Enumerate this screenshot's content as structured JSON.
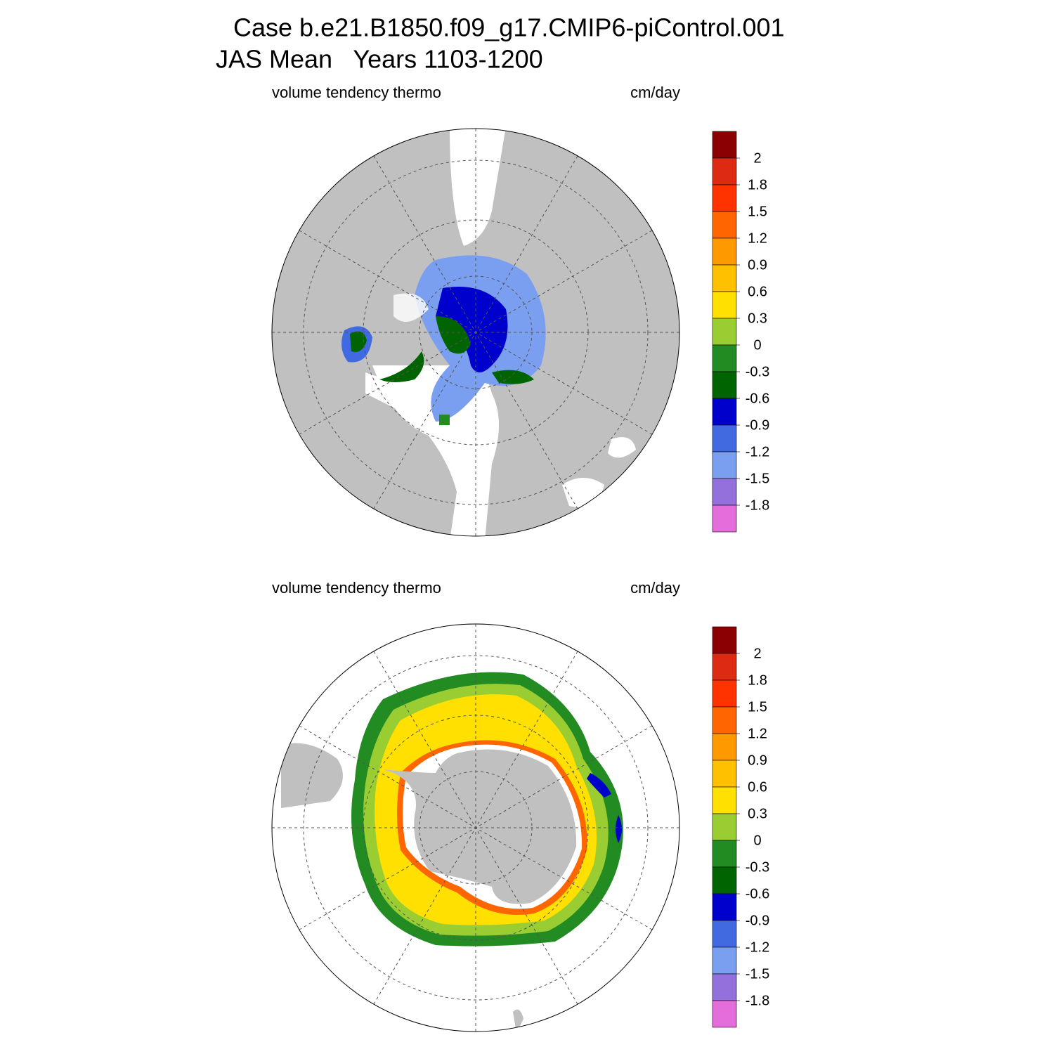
{
  "header": {
    "title": "Case b.e21.B1850.f09_g17.CMIP6-piControl.001",
    "subtitle": "JAS Mean   Years 1103-1200"
  },
  "panels": [
    {
      "left_label": "volume tendency thermo",
      "right_label": "cm/day",
      "colorbar": {
        "levels": [
          2,
          1.8,
          1.5,
          1.2,
          0.9,
          0.6,
          0.3,
          0,
          -0.3,
          -0.6,
          -0.9,
          -1.2,
          -1.5,
          -1.8
        ],
        "colors": [
          "#8b0000",
          "#dd2a12",
          "#ff3300",
          "#ff6600",
          "#ff9900",
          "#ffc000",
          "#ffe000",
          "#9acd32",
          "#228b22",
          "#006400",
          "#0000cd",
          "#4169e1",
          "#7b9ff0",
          "#9370db",
          "#e56cdb"
        ]
      }
    },
    {
      "left_label": "volume tendency thermo",
      "right_label": "cm/day",
      "colorbar": {
        "levels": [
          2,
          1.8,
          1.5,
          1.2,
          0.9,
          0.6,
          0.3,
          0,
          -0.3,
          -0.6,
          -0.9,
          -1.2,
          -1.5,
          -1.8
        ],
        "colors": [
          "#8b0000",
          "#dd2a12",
          "#ff3300",
          "#ff6600",
          "#ff9900",
          "#ffc000",
          "#ffe000",
          "#9acd32",
          "#228b22",
          "#006400",
          "#0000cd",
          "#4169e1",
          "#7b9ff0",
          "#9370db",
          "#e56cdb"
        ]
      }
    }
  ]
}
